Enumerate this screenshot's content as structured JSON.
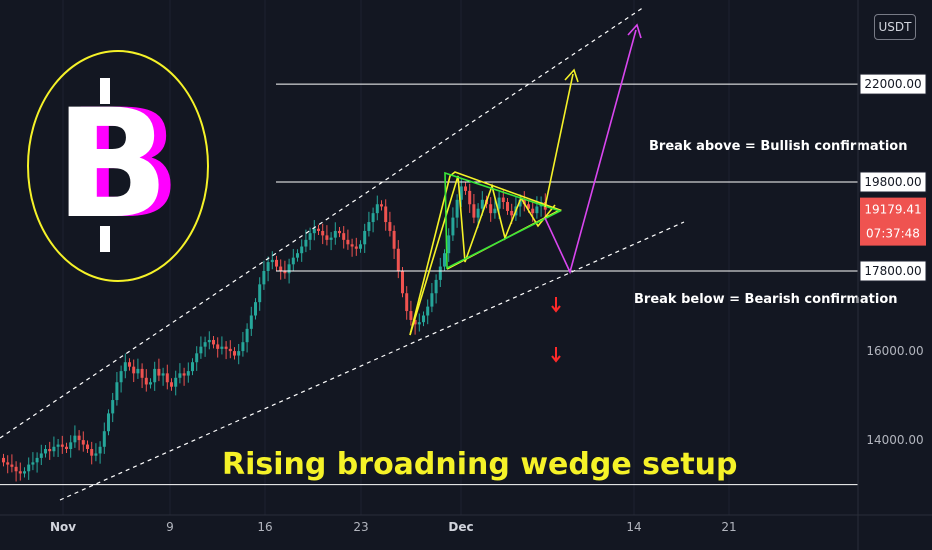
{
  "currency": "USDT",
  "colors": {
    "background": "#131722",
    "up": "#26a69a",
    "down": "#ef5350",
    "triangle": "#f5f228",
    "pennant": "#39e639",
    "path_alt": "#d946ef",
    "headline": "#f5f228",
    "logo_ring": "#f5f228",
    "logo_shadow": "#ff00ff",
    "current_price_bg": "#ef5350"
  },
  "logo": {
    "icon": "bitcoin-logo-icon",
    "glyph": "B"
  },
  "annotations": {
    "headline": "Rising broadning wedge setup",
    "break_above": "Break above = Bullish confirmation",
    "break_below": "Break below = Bearish confirmation"
  },
  "price_labels": {
    "current_price": "19179.41",
    "countdown": "07:37:48"
  },
  "chart_data": {
    "type": "candlestick",
    "title": "",
    "xlabel": "",
    "ylabel": "",
    "x_ticks": [
      {
        "label": "Nov",
        "bold": true
      },
      {
        "label": "9",
        "bold": false
      },
      {
        "label": "16",
        "bold": false
      },
      {
        "label": "23",
        "bold": false
      },
      {
        "label": "Dec",
        "bold": true
      },
      {
        "label": "14",
        "bold": false
      },
      {
        "label": "21",
        "bold": false
      }
    ],
    "y_ticks": [
      {
        "value": 14000,
        "label": "14000.00"
      },
      {
        "value": 16000,
        "label": "16000.00"
      },
      {
        "value": 19800,
        "label": "19800.00"
      }
    ],
    "levels": [
      {
        "value": 22000,
        "label": "22000.00"
      },
      {
        "value": 19800,
        "label": "19800.00"
      },
      {
        "value": 17800,
        "label": "17800.00"
      },
      {
        "value": 13000,
        "label": ""
      }
    ],
    "current_price": 19179.41,
    "close_prices_start": 13600,
    "close_prices": [
      13500,
      13450,
      13400,
      13300,
      13250,
      13300,
      13450,
      13500,
      13600,
      13700,
      13800,
      13750,
      13850,
      13900,
      13850,
      13800,
      13950,
      14100,
      14000,
      13900,
      13800,
      13650,
      13700,
      13850,
      14200,
      14600,
      14900,
      15300,
      15550,
      15750,
      15650,
      15500,
      15600,
      15400,
      15250,
      15300,
      15600,
      15450,
      15500,
      15300,
      15200,
      15400,
      15500,
      15450,
      15550,
      15750,
      15950,
      16100,
      16200,
      16250,
      16150,
      16050,
      16100,
      16050,
      16000,
      15900,
      16000,
      16200,
      16500,
      16800,
      17100,
      17500,
      17800,
      18000,
      18050,
      17900,
      17800,
      17750,
      17950,
      18100,
      18200,
      18350,
      18500,
      18650,
      18750,
      18700,
      18600,
      18500,
      18550,
      18700,
      18650,
      18500,
      18400,
      18350,
      18300,
      18400,
      18700,
      18900,
      19100,
      19300,
      19250,
      18900,
      18700,
      18300,
      17800,
      17300,
      16900,
      16700,
      16600,
      16650,
      16800,
      17000,
      17300,
      17600,
      17900,
      18200,
      18600,
      19000,
      19400,
      19700,
      19600,
      19300,
      19000,
      19200,
      19400,
      19300,
      19100,
      19200,
      19450,
      19350,
      19150,
      19050,
      19250,
      19400,
      19300,
      19200,
      19100,
      19250,
      19350,
      19179
    ]
  }
}
